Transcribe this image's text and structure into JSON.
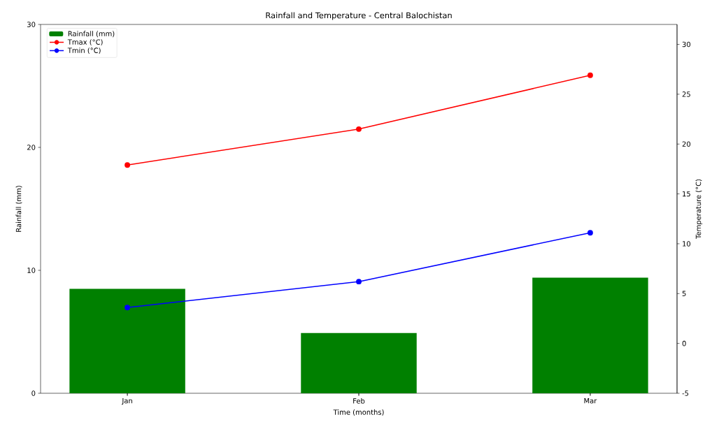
{
  "chart_data": {
    "type": "bar",
    "title": "Rainfall and Temperature - Central Balochistan",
    "xlabel": "Time (months)",
    "ylabel": "Rainfall (mm)",
    "y2label": "Temperature (°C)",
    "categories": [
      "Jan",
      "Feb",
      "Mar"
    ],
    "series": [
      {
        "name": "Rainfall (mm)",
        "color": "#008000",
        "values": [
          8.5,
          4.9,
          9.4
        ]
      },
      {
        "name": "Tmax (°C)",
        "type": "line",
        "axis": "y2",
        "color": "#ff0000",
        "marker": "circle",
        "line_style": "solid",
        "values": [
          17.9,
          21.5,
          26.9
        ]
      },
      {
        "name": "Tmin (°C)",
        "type": "line",
        "axis": "y2",
        "color": "#0000ff",
        "marker": "circle",
        "line_style": "solid",
        "values": [
          3.6,
          6.2,
          11.1
        ]
      }
    ],
    "ylim": [
      0,
      30
    ],
    "yticks": [
      0,
      10,
      20,
      30
    ],
    "y2lim": [
      -5,
      32
    ],
    "y2ticks": [
      -5,
      0,
      5,
      10,
      15,
      20,
      25,
      30
    ],
    "legend": "top left"
  }
}
